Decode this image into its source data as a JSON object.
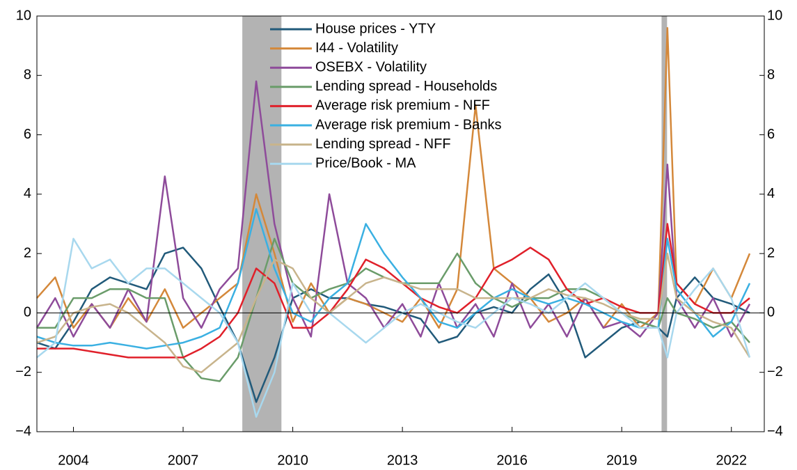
{
  "chart_data": {
    "type": "line",
    "x": [
      2003,
      2003.5,
      2004,
      2004.5,
      2005,
      2005.5,
      2006,
      2006.5,
      2007,
      2007.5,
      2008,
      2008.5,
      2009,
      2009.5,
      2010,
      2010.5,
      2011,
      2011.5,
      2012,
      2012.5,
      2013,
      2013.5,
      2014,
      2014.5,
      2015,
      2015.5,
      2016,
      2016.5,
      2017,
      2017.5,
      2018,
      2018.5,
      2019,
      2019.5,
      2020,
      2020.25,
      2020.5,
      2021,
      2021.5,
      2022,
      2022.5
    ],
    "series": [
      {
        "name": "House prices - YTY",
        "color": "#215a7a",
        "values": [
          -1.0,
          -1.2,
          -0.3,
          0.8,
          1.2,
          1.0,
          0.8,
          2.0,
          2.2,
          1.5,
          0.2,
          -1.0,
          -3.0,
          -1.5,
          0.5,
          0.8,
          0.5,
          0.5,
          0.3,
          0.2,
          0.0,
          -0.2,
          -1.0,
          -0.8,
          0.0,
          0.2,
          0.0,
          0.8,
          1.3,
          0.3,
          -1.5,
          -1.0,
          -0.5,
          -0.3,
          -0.5,
          -0.8,
          0.5,
          1.2,
          0.5,
          0.3,
          0.0
        ]
      },
      {
        "name": "I44 - Volatility",
        "color": "#d4883a",
        "values": [
          0.5,
          1.2,
          -0.5,
          0.3,
          -0.5,
          0.5,
          -0.3,
          0.8,
          -0.5,
          0.0,
          0.5,
          1.0,
          4.0,
          2.0,
          -0.3,
          1.0,
          0.0,
          0.5,
          0.3,
          0.0,
          -0.3,
          0.5,
          -0.5,
          0.8,
          7.0,
          1.5,
          1.0,
          0.5,
          -0.3,
          0.0,
          0.5,
          -0.5,
          0.3,
          -0.5,
          0.0,
          9.6,
          1.0,
          0.3,
          1.5,
          0.5,
          2.0
        ]
      },
      {
        "name": "OSEBX - Volatility",
        "color": "#8e4b9a",
        "values": [
          -0.5,
          0.5,
          -0.8,
          0.3,
          -0.5,
          0.8,
          -0.3,
          4.6,
          0.5,
          -0.5,
          0.8,
          1.5,
          7.8,
          3.0,
          0.5,
          -0.8,
          4.0,
          1.0,
          0.5,
          -0.5,
          0.3,
          -0.8,
          1.0,
          -0.5,
          0.3,
          -0.8,
          1.0,
          -0.5,
          0.3,
          -0.8,
          0.5,
          -0.5,
          -0.3,
          -0.8,
          0.0,
          5.0,
          0.5,
          -0.5,
          0.5,
          -0.8,
          0.3
        ]
      },
      {
        "name": "Lending spread - Households",
        "color": "#6a9c6a",
        "values": [
          -0.5,
          -0.5,
          0.5,
          0.5,
          0.8,
          0.8,
          0.5,
          0.5,
          -1.5,
          -2.2,
          -2.3,
          -1.5,
          0.5,
          2.5,
          1.0,
          0.5,
          0.8,
          1.0,
          1.5,
          1.2,
          1.0,
          1.0,
          1.0,
          2.0,
          1.0,
          0.5,
          0.2,
          0.5,
          0.5,
          0.8,
          0.8,
          0.5,
          0.0,
          -0.3,
          -0.5,
          0.5,
          0.0,
          -0.2,
          -0.5,
          -0.3,
          -1.0
        ]
      },
      {
        "name": "Average risk premium - NFF",
        "color": "#e0202a",
        "values": [
          -1.2,
          -1.2,
          -1.2,
          -1.3,
          -1.4,
          -1.5,
          -1.5,
          -1.5,
          -1.5,
          -1.2,
          -0.8,
          0.0,
          1.5,
          1.0,
          -0.5,
          -0.5,
          0.0,
          0.8,
          1.8,
          1.5,
          1.0,
          0.5,
          0.2,
          0.0,
          0.5,
          1.5,
          1.8,
          2.2,
          1.8,
          0.8,
          0.3,
          0.5,
          0.2,
          0.0,
          0.0,
          3.0,
          1.0,
          0.3,
          0.0,
          0.0,
          0.5
        ]
      },
      {
        "name": "Average risk premium - Banks",
        "color": "#3ab0e2",
        "values": [
          -0.8,
          -1.0,
          -1.1,
          -1.1,
          -1.0,
          -1.1,
          -1.2,
          -1.1,
          -1.0,
          -0.8,
          -0.5,
          1.0,
          3.5,
          1.5,
          0.0,
          -0.3,
          0.5,
          1.0,
          3.0,
          2.0,
          1.2,
          0.5,
          -0.3,
          -0.5,
          0.0,
          0.5,
          0.8,
          0.5,
          0.3,
          0.5,
          0.3,
          0.0,
          -0.3,
          -0.5,
          -0.5,
          2.5,
          0.8,
          0.0,
          -0.8,
          -0.3,
          1.0
        ]
      },
      {
        "name": "Lending spread - NFF",
        "color": "#c8b48c",
        "values": [
          -1.0,
          -0.8,
          0.0,
          0.2,
          0.3,
          0.0,
          -0.5,
          -1.0,
          -1.8,
          -2.0,
          -1.5,
          -1.0,
          0.5,
          1.8,
          1.5,
          0.5,
          0.0,
          0.5,
          1.0,
          1.2,
          1.0,
          0.8,
          0.8,
          0.8,
          0.5,
          0.5,
          0.5,
          0.5,
          0.8,
          0.6,
          0.5,
          0.3,
          0.0,
          -0.2,
          -0.2,
          2.0,
          0.5,
          0.0,
          -0.3,
          -0.5,
          -1.5
        ]
      },
      {
        "name": "Price/Book - MA",
        "color": "#a8d8ee",
        "values": [
          -1.5,
          -1.0,
          2.5,
          1.5,
          1.8,
          1.0,
          1.5,
          1.5,
          1.0,
          0.5,
          0.0,
          -1.0,
          -3.5,
          -2.0,
          1.0,
          0.0,
          0.0,
          -0.5,
          -1.0,
          -0.5,
          0.0,
          0.3,
          0.0,
          -0.3,
          -0.5,
          0.0,
          0.5,
          0.3,
          0.0,
          0.5,
          1.0,
          0.5,
          0.0,
          -0.5,
          -0.5,
          -1.5,
          0.0,
          0.8,
          1.5,
          0.5,
          -1.5
        ]
      }
    ],
    "shaded_periods": [
      [
        2008.62,
        2009.69
      ],
      [
        2020.09,
        2020.24
      ]
    ],
    "xlim": [
      2003,
      2022.9
    ],
    "xticks": [
      2004,
      2007,
      2010,
      2013,
      2016,
      2019,
      2022
    ],
    "ylim": [
      -4,
      10
    ],
    "yticks": [
      {
        "value": -4,
        "label": "−4"
      },
      {
        "value": -2,
        "label": "−2"
      },
      0,
      2,
      4,
      6,
      8,
      10
    ],
    "y2lim": [
      -4,
      10
    ],
    "y2ticks": [
      {
        "value": -4,
        "label": "−4"
      },
      {
        "value": -2,
        "label": "−2"
      },
      0,
      2,
      4,
      6,
      8,
      10
    ]
  }
}
